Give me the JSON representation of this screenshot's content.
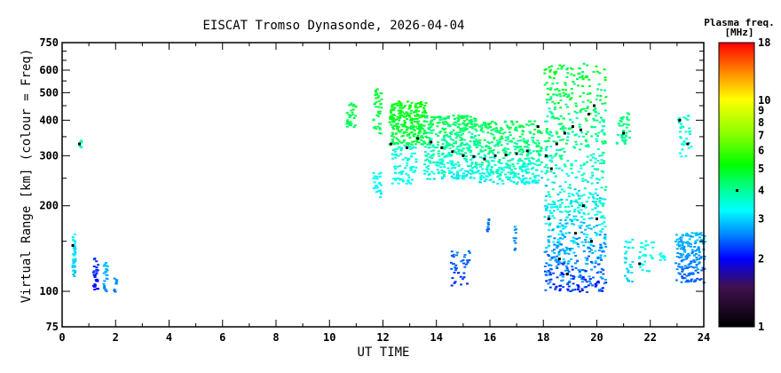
{
  "chart_data": {
    "type": "scatter",
    "title": "EISCAT Tromso Dynasonde, 2026-04-04",
    "xlabel": "UT TIME",
    "ylabel": "Virtual Range [km] (colour = Freq)",
    "xlim": [
      0,
      24
    ],
    "ylim": [
      75,
      750
    ],
    "yscale": "log",
    "xticks": [
      "0",
      "2",
      "4",
      "6",
      "8",
      "10",
      "12",
      "14",
      "16",
      "18",
      "20",
      "22",
      "24"
    ],
    "yticks": [
      "75",
      "100",
      "200",
      "300",
      "400",
      "500",
      "600",
      "750"
    ],
    "colorbar": {
      "title": "Plasma freq.",
      "unit": "[MHz]",
      "range": [
        1,
        18
      ],
      "ticks": [
        "1",
        "2",
        "3",
        "4",
        "5",
        "6",
        "7",
        "8",
        "9",
        "10",
        "18"
      ],
      "marker_freq": 4
    },
    "traces_note": "echo clusters: time range [h UT], virtual range [km], plasma freq range [MHz]",
    "traces": [
      {
        "t": [
          0.35,
          0.45
        ],
        "h": [
          110,
          160
        ],
        "f": [
          2.7,
          3.4
        ],
        "n": 40
      },
      {
        "t": [
          0.62,
          0.7
        ],
        "h": [
          320,
          345
        ],
        "f": [
          3.6,
          3.9
        ],
        "n": 8
      },
      {
        "t": [
          1.1,
          1.3
        ],
        "h": [
          102,
          132
        ],
        "f": [
          1.9,
          2.3
        ],
        "n": 30
      },
      {
        "t": [
          1.5,
          1.65
        ],
        "h": [
          100,
          130
        ],
        "f": [
          2.4,
          3.1
        ],
        "n": 25
      },
      {
        "t": [
          1.9,
          2.0
        ],
        "h": [
          100,
          115
        ],
        "f": [
          2.4,
          2.7
        ],
        "n": 10
      },
      {
        "t": [
          10.6,
          10.95
        ],
        "h": [
          380,
          470
        ],
        "f": [
          4.3,
          4.8
        ],
        "n": 30
      },
      {
        "t": [
          11.6,
          11.9
        ],
        "h": [
          215,
          265
        ],
        "f": [
          3.1,
          3.5
        ],
        "n": 25
      },
      {
        "t": [
          11.6,
          11.9
        ],
        "h": [
          360,
          520
        ],
        "f": [
          4.3,
          5.0
        ],
        "n": 40
      },
      {
        "t": [
          12.2,
          13.6
        ],
        "h": [
          330,
          470
        ],
        "f": [
          4.3,
          5.4
        ],
        "n": 260
      },
      {
        "t": [
          12.3,
          13.2
        ],
        "h": [
          240,
          330
        ],
        "f": [
          3.2,
          3.7
        ],
        "n": 80
      },
      {
        "t": [
          13.5,
          15.5
        ],
        "h": [
          250,
          420
        ],
        "f": [
          2.9,
          5.0
        ],
        "n": 420
      },
      {
        "t": [
          15.5,
          17.9
        ],
        "h": [
          240,
          400
        ],
        "f": [
          2.9,
          5.0
        ],
        "n": 420
      },
      {
        "t": [
          14.5,
          15.2
        ],
        "h": [
          105,
          140
        ],
        "f": [
          2.0,
          2.6
        ],
        "n": 40
      },
      {
        "t": [
          15.85,
          15.95
        ],
        "h": [
          160,
          182
        ],
        "f": [
          2.3,
          2.6
        ],
        "n": 8
      },
      {
        "t": [
          16.85,
          16.95
        ],
        "h": [
          140,
          172
        ],
        "f": [
          2.4,
          2.8
        ],
        "n": 10
      },
      {
        "t": [
          18.0,
          20.3
        ],
        "h": [
          200,
          640
        ],
        "f": [
          2.6,
          5.5
        ],
        "n": 420
      },
      {
        "t": [
          18.0,
          20.3
        ],
        "h": [
          100,
          210
        ],
        "f": [
          1.8,
          3.8
        ],
        "n": 420
      },
      {
        "t": [
          20.7,
          21.2
        ],
        "h": [
          330,
          430
        ],
        "f": [
          3.8,
          4.5
        ],
        "n": 40
      },
      {
        "t": [
          21.0,
          21.3
        ],
        "h": [
          108,
          155
        ],
        "f": [
          2.8,
          3.4
        ],
        "n": 30
      },
      {
        "t": [
          21.5,
          22.1
        ],
        "h": [
          118,
          152
        ],
        "f": [
          3.1,
          3.6
        ],
        "n": 30
      },
      {
        "t": [
          22.3,
          22.5
        ],
        "h": [
          128,
          140
        ],
        "f": [
          3.2,
          3.5
        ],
        "n": 8
      },
      {
        "t": [
          23.0,
          23.5
        ],
        "h": [
          300,
          425
        ],
        "f": [
          3.2,
          3.8
        ],
        "n": 35
      },
      {
        "t": [
          22.9,
          24.0
        ],
        "h": [
          108,
          162
        ],
        "f": [
          2.2,
          3.0
        ],
        "n": 180
      }
    ],
    "peaks": [
      [
        0.4,
        145
      ],
      [
        0.65,
        330
      ],
      [
        12.3,
        330
      ],
      [
        12.9,
        320
      ],
      [
        13.3,
        345
      ],
      [
        13.8,
        335
      ],
      [
        14.2,
        320
      ],
      [
        14.6,
        310
      ],
      [
        15.0,
        300
      ],
      [
        15.4,
        298
      ],
      [
        15.8,
        292
      ],
      [
        16.2,
        300
      ],
      [
        16.6,
        302
      ],
      [
        17.0,
        305
      ],
      [
        17.4,
        312
      ],
      [
        17.8,
        380
      ],
      [
        18.1,
        300
      ],
      [
        18.3,
        270
      ],
      [
        18.5,
        330
      ],
      [
        18.8,
        360
      ],
      [
        19.1,
        380
      ],
      [
        19.4,
        370
      ],
      [
        19.7,
        420
      ],
      [
        19.9,
        450
      ],
      [
        18.2,
        180
      ],
      [
        18.6,
        130
      ],
      [
        18.9,
        115
      ],
      [
        19.2,
        160
      ],
      [
        19.5,
        200
      ],
      [
        19.8,
        150
      ],
      [
        20.0,
        180
      ],
      [
        21.0,
        360
      ],
      [
        21.6,
        125
      ],
      [
        23.1,
        400
      ],
      [
        23.4,
        330
      ]
    ]
  }
}
